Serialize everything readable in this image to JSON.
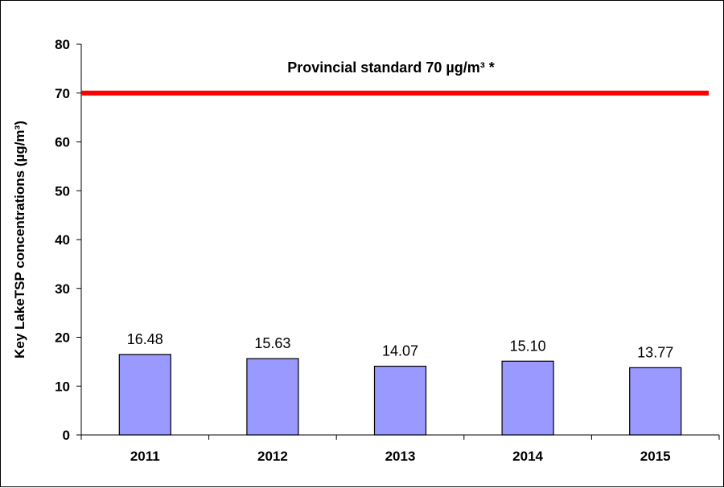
{
  "chart_data": {
    "type": "bar",
    "categories": [
      "2011",
      "2012",
      "2013",
      "2014",
      "2015"
    ],
    "values": [
      16.48,
      15.63,
      14.07,
      15.1,
      13.77
    ],
    "value_labels": [
      "16.48",
      "15.63",
      "14.07",
      "15.10",
      "13.77"
    ],
    "ylabel": "Key LakeTSP concentrations (µg/m³)",
    "xlabel": "",
    "ylim": [
      0,
      80
    ],
    "yticks": [
      0,
      10,
      20,
      30,
      40,
      50,
      60,
      70,
      80
    ],
    "grid": false,
    "legend": "none",
    "bar_color": "#9999FF",
    "reference_line": {
      "value": 70,
      "label": "Provincial standard 70 µg/m³ *",
      "color": "#FF0000"
    }
  }
}
